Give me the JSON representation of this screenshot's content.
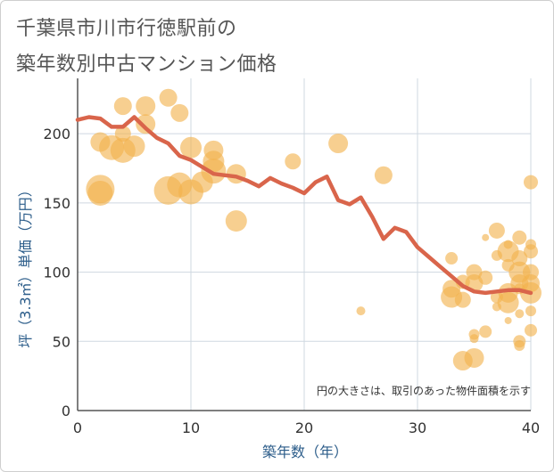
{
  "title_lines": [
    "千葉県市川市行徳駅前の",
    "築年数別中古マンション価格"
  ],
  "colors": {
    "bubble": "#f2b24c",
    "line": "#d9654b",
    "grid": "#cfd8e0",
    "axis_text": "#2c5d8a"
  },
  "chart_data": {
    "type": "scatter",
    "title": "千葉県市川市行徳駅前の築年数別中古マンション価格",
    "xlabel": "築年数（年）",
    "ylabel": "坪（3.3㎡）単価（万円）",
    "xlim": [
      0,
      40
    ],
    "ylim": [
      0,
      240
    ],
    "x_ticks": [
      0,
      10,
      20,
      30,
      40
    ],
    "y_ticks": [
      0,
      50,
      100,
      150,
      200
    ],
    "grid": true,
    "annotation": "円の大きさは、取引のあった物件面積を示す",
    "series": [
      {
        "kind": "bubble",
        "points": [
          [
            2,
            160,
            16
          ],
          [
            2,
            157,
            14
          ],
          [
            2,
            194,
            11
          ],
          [
            3,
            190,
            14
          ],
          [
            4,
            188,
            14
          ],
          [
            4,
            220,
            10
          ],
          [
            4,
            200,
            9
          ],
          [
            5,
            191,
            12
          ],
          [
            6,
            220,
            11
          ],
          [
            6,
            207,
            11
          ],
          [
            8,
            226,
            10
          ],
          [
            9,
            215,
            10
          ],
          [
            8,
            159,
            16
          ],
          [
            9,
            163,
            14
          ],
          [
            10,
            158,
            14
          ],
          [
            10,
            190,
            12
          ],
          [
            11,
            165,
            12
          ],
          [
            12,
            188,
            11
          ],
          [
            12,
            180,
            12
          ],
          [
            12,
            173,
            14
          ],
          [
            14,
            171,
            11
          ],
          [
            14,
            137,
            12
          ],
          [
            19,
            180,
            9
          ],
          [
            23,
            193,
            11
          ],
          [
            25,
            72,
            5
          ],
          [
            27,
            170,
            10
          ],
          [
            33,
            88,
            10
          ],
          [
            33,
            82,
            12
          ],
          [
            33,
            110,
            7
          ],
          [
            34,
            36,
            11
          ],
          [
            34,
            93,
            8
          ],
          [
            34,
            80,
            9
          ],
          [
            35,
            38,
            11
          ],
          [
            35,
            52,
            5
          ],
          [
            35,
            55,
            6
          ],
          [
            35,
            100,
            9
          ],
          [
            35,
            92,
            10
          ],
          [
            36,
            57,
            7
          ],
          [
            36,
            96,
            8
          ],
          [
            36,
            125,
            4
          ],
          [
            37,
            130,
            9
          ],
          [
            37,
            112,
            6
          ],
          [
            37,
            82,
            7
          ],
          [
            37,
            75,
            5
          ],
          [
            38,
            78,
            12
          ],
          [
            38,
            85,
            11
          ],
          [
            38,
            115,
            12
          ],
          [
            38,
            105,
            7
          ],
          [
            38,
            120,
            5
          ],
          [
            38,
            65,
            4
          ],
          [
            39,
            125,
            8
          ],
          [
            39,
            110,
            9
          ],
          [
            39,
            100,
            12
          ],
          [
            39,
            92,
            10
          ],
          [
            39,
            50,
            7
          ],
          [
            39,
            47,
            6
          ],
          [
            39,
            70,
            5
          ],
          [
            39,
            88,
            6
          ],
          [
            40,
            165,
            8
          ],
          [
            40,
            115,
            8
          ],
          [
            40,
            85,
            12
          ],
          [
            40,
            72,
            6
          ],
          [
            40,
            58,
            7
          ],
          [
            40,
            92,
            10
          ],
          [
            40,
            100,
            9
          ],
          [
            40,
            120,
            6
          ]
        ]
      },
      {
        "kind": "line",
        "x": [
          0,
          1,
          2,
          3,
          4,
          5,
          6,
          7,
          8,
          9,
          10,
          11,
          12,
          13,
          14,
          15,
          16,
          17,
          18,
          19,
          20,
          21,
          22,
          23,
          24,
          25,
          26,
          27,
          28,
          29,
          30,
          31,
          32,
          33,
          34,
          35,
          36,
          37,
          38,
          39,
          40
        ],
        "y": [
          210,
          212,
          211,
          205,
          205,
          212,
          204,
          197,
          193,
          184,
          181,
          176,
          171,
          170,
          169,
          166,
          162,
          168,
          164,
          161,
          157,
          165,
          169,
          152,
          149,
          154,
          140,
          124,
          132,
          129,
          118,
          111,
          104,
          97,
          90,
          86,
          85,
          86,
          87,
          87,
          85
        ]
      }
    ]
  }
}
